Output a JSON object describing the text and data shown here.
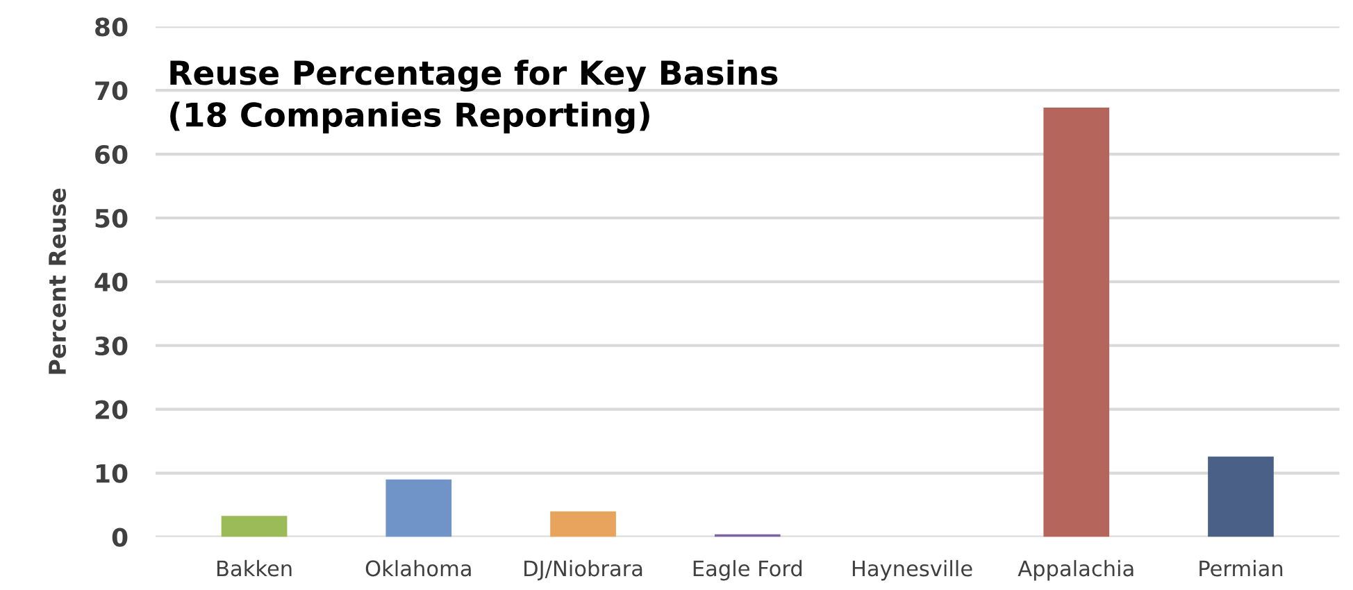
{
  "chart_data": {
    "type": "bar",
    "title": "Reuse Percentage for Key Basins\n(18 Companies Reporting)",
    "ylabel": "Percent Reuse",
    "categories": [
      "Bakken",
      "Oklahoma",
      "DJ/Niobrara",
      "Eagle Ford",
      "Haynesville",
      "Appalachia",
      "Permian"
    ],
    "values": [
      3.3,
      9.0,
      4.0,
      0.4,
      0,
      67.3,
      12.6
    ],
    "colors": [
      "#9bbb59",
      "#7094c8",
      "#e8a35c",
      "#8064a2",
      "#4bacc6",
      "#b5655c",
      "#4a6086"
    ],
    "ylim": [
      0,
      80
    ],
    "yticks": [
      0,
      10,
      20,
      30,
      40,
      50,
      60,
      70,
      80
    ],
    "grid": "y"
  }
}
